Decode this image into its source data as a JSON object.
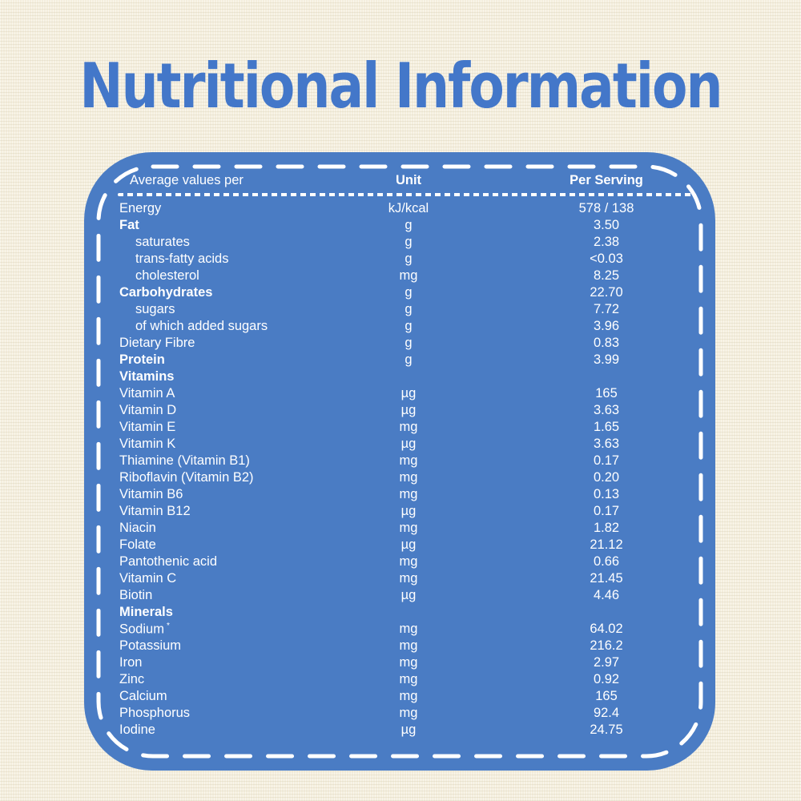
{
  "page": {
    "title": "Nutritional Information"
  },
  "colors": {
    "card_blue": "#4a7cc4",
    "background_cream": "#f4eedd",
    "title_blue": "#4377c9",
    "text_white": "#ffffff"
  },
  "table": {
    "headers": {
      "name": "Average values per",
      "unit": "Unit",
      "value": "Per Serving"
    },
    "rows": [
      {
        "label": "Energy",
        "unit": "kJ/kcal",
        "value": "578 / 138"
      },
      {
        "label": "Fat",
        "unit": "g",
        "value": "3.50",
        "bold": true
      },
      {
        "label": "saturates",
        "unit": "g",
        "value": "2.38",
        "indent": true
      },
      {
        "label": "trans-fatty acids",
        "unit": "g",
        "value": "<0.03",
        "indent": true
      },
      {
        "label": "cholesterol",
        "unit": "mg",
        "value": "8.25",
        "indent": true
      },
      {
        "label": "Carbohydrates",
        "unit": "g",
        "value": "22.70",
        "bold": true
      },
      {
        "label": "sugars",
        "unit": "g",
        "value": "7.72",
        "indent": true
      },
      {
        "label": "of which added sugars",
        "unit": "g",
        "value": "3.96",
        "indent": true
      },
      {
        "label": "Dietary Fibre",
        "unit": "g",
        "value": "0.83"
      },
      {
        "label": "Protein",
        "unit": "g",
        "value": "3.99",
        "bold": true
      },
      {
        "label": "Vitamins",
        "unit": "",
        "value": "",
        "bold": true
      },
      {
        "label": "Vitamin A",
        "unit": "µg",
        "value": "165"
      },
      {
        "label": "Vitamin D",
        "unit": "µg",
        "value": "3.63"
      },
      {
        "label": "Vitamin E",
        "unit": "mg",
        "value": "1.65"
      },
      {
        "label": "Vitamin K",
        "unit": "µg",
        "value": "3.63"
      },
      {
        "label": "Thiamine (Vitamin B1)",
        "unit": "mg",
        "value": "0.17"
      },
      {
        "label": "Riboflavin (Vitamin B2)",
        "unit": "mg",
        "value": "0.20"
      },
      {
        "label": "Vitamin B6",
        "unit": "mg",
        "value": "0.13"
      },
      {
        "label": "Vitamin B12",
        "unit": "µg",
        "value": "0.17"
      },
      {
        "label": "Niacin",
        "unit": "mg",
        "value": "1.82"
      },
      {
        "label": "Folate",
        "unit": "µg",
        "value": "21.12"
      },
      {
        "label": "Pantothenic acid",
        "unit": "mg",
        "value": "0.66"
      },
      {
        "label": "Vitamin C",
        "unit": "mg",
        "value": "21.45"
      },
      {
        "label": "Biotin",
        "unit": "µg",
        "value": "4.46"
      },
      {
        "label": "Minerals",
        "unit": "",
        "value": "",
        "bold": true
      },
      {
        "label": "Sodium",
        "unit": "mg",
        "value": "64.02",
        "sup": "*"
      },
      {
        "label": "Potassium",
        "unit": "mg",
        "value": "216.2"
      },
      {
        "label": "Iron",
        "unit": "mg",
        "value": "2.97"
      },
      {
        "label": "Zinc",
        "unit": "mg",
        "value": "0.92"
      },
      {
        "label": "Calcium",
        "unit": "mg",
        "value": "165"
      },
      {
        "label": "Phosphorus",
        "unit": "mg",
        "value": "92.4"
      },
      {
        "label": "Iodine",
        "unit": "µg",
        "value": "24.75"
      }
    ]
  }
}
